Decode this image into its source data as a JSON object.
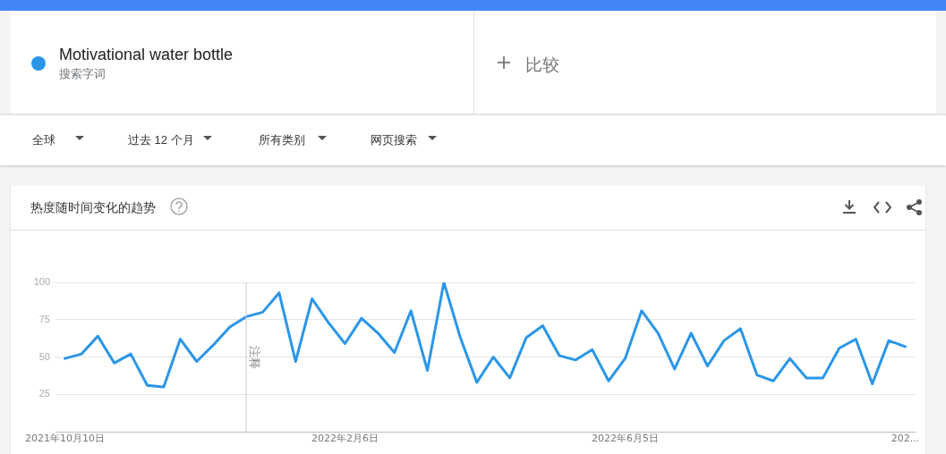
{
  "chart_data": {
    "type": "line",
    "title": "热度随时间变化的趋势",
    "annotations": [
      "搜索字词",
      "比较",
      "全球",
      "过去 12 个月",
      "所有类别",
      "网页搜索"
    ],
    "x": [
      "2021-10-10",
      "2021-10-17",
      "2021-10-24",
      "2021-10-31",
      "2021-11-07",
      "2021-11-14",
      "2021-11-21",
      "2021-11-28",
      "2021-12-05",
      "2021-12-12",
      "2021-12-19",
      "2021-12-26",
      "2022-01-02",
      "2022-01-09",
      "2022-01-16",
      "2022-01-23",
      "2022-01-30",
      "2022-02-06",
      "2022-02-13",
      "2022-02-20",
      "2022-02-27",
      "2022-03-06",
      "2022-03-13",
      "2022-03-20",
      "2022-03-27",
      "2022-04-03",
      "2022-04-10",
      "2022-04-17",
      "2022-04-24",
      "2022-05-01",
      "2022-05-08",
      "2022-05-15",
      "2022-05-22",
      "2022-05-29",
      "2022-06-05",
      "2022-06-12",
      "2022-06-19",
      "2022-06-26",
      "2022-07-03",
      "2022-07-10",
      "2022-07-17",
      "2022-07-24",
      "2022-07-31",
      "2022-08-07",
      "2022-08-14",
      "2022-08-21",
      "2022-08-28",
      "2022-09-04",
      "2022-09-11",
      "2022-09-18",
      "2022-09-25",
      "2022-10-02"
    ],
    "series": [
      {
        "name": "Motivational water bottle",
        "color": "#2b96e8",
        "values": [
          49,
          52,
          64,
          46,
          52,
          31,
          30,
          62,
          47,
          58,
          70,
          77,
          80,
          93,
          47,
          89,
          73,
          59,
          76,
          66,
          53,
          81,
          41,
          100,
          63,
          33,
          50,
          36,
          63,
          71,
          51,
          48,
          55,
          34,
          49,
          81,
          66,
          42,
          66,
          44,
          61,
          69,
          38,
          34,
          49,
          36,
          36,
          56,
          62,
          32,
          61,
          57
        ]
      }
    ],
    "xlim": [
      "2021-10-06",
      "2022-10-06"
    ],
    "xticks": [
      {
        "value": "2021-10-10",
        "label": "2021年10月10日"
      },
      {
        "value": "2022-02-06",
        "label": "2022年2月6日"
      },
      {
        "value": "2022-06-05",
        "label": "2022年6月5日"
      },
      {
        "value": "2022-10-02",
        "label": "202..."
      }
    ],
    "ylim": [
      0,
      100
    ],
    "yticks": [
      {
        "value": 0,
        "label": null
      },
      25,
      50,
      75,
      100
    ],
    "grid": "y",
    "legend": "top left",
    "marker": "none",
    "line_style": "solid",
    "ref_lines": [
      {
        "axis": "x",
        "value": "2021-12-26",
        "label": "注释",
        "color": "#cccccc"
      }
    ]
  }
}
